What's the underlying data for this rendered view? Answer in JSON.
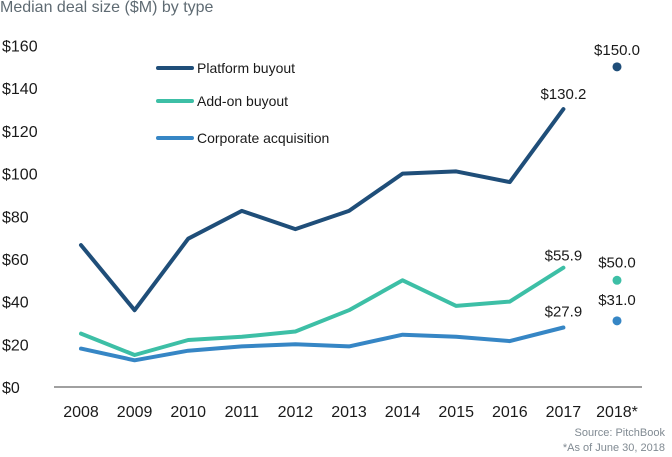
{
  "chart_data": {
    "type": "line",
    "title": "Median deal size ($M) by type",
    "categories": [
      "2008",
      "2009",
      "2010",
      "2011",
      "2012",
      "2013",
      "2014",
      "2015",
      "2016",
      "2017",
      "2018*"
    ],
    "ylim": [
      0,
      160
    ],
    "yticks": [
      0,
      20,
      40,
      60,
      80,
      100,
      120,
      140,
      160
    ],
    "ytick_labels": [
      "$0",
      "$20",
      "$40",
      "$60",
      "$80",
      "$100",
      "$120",
      "$140",
      "$160"
    ],
    "series": [
      {
        "name": "Platform buyout",
        "color": "#1f4e79",
        "values": [
          66.5,
          36,
          69.5,
          82.5,
          74,
          82.5,
          100,
          101,
          96,
          130.2,
          150.0
        ],
        "labels": [
          {
            "index": 9,
            "text": "$130.2"
          },
          {
            "index": 10,
            "text": "$150.0"
          }
        ]
      },
      {
        "name": "Add-on buyout",
        "color": "#3dbfa6",
        "values": [
          25,
          15,
          22,
          23.5,
          26,
          36,
          50,
          38,
          40,
          55.9,
          50.0
        ],
        "labels": [
          {
            "index": 9,
            "text": "$55.9"
          },
          {
            "index": 10,
            "text": "$50.0"
          }
        ]
      },
      {
        "name": "Corporate acquisition",
        "color": "#3686c5",
        "values": [
          18,
          12.5,
          17,
          19,
          20,
          19,
          24.5,
          23.5,
          21.5,
          27.9,
          31.0
        ],
        "labels": [
          {
            "index": 9,
            "text": "$27.9"
          },
          {
            "index": 10,
            "text": "$31.0"
          }
        ]
      }
    ],
    "last_point_separate_marker": true,
    "legend_position": "top-left",
    "grid": false
  },
  "footnotes": {
    "source": "Source: PitchBook",
    "asof": "*As of June 30, 2018"
  }
}
